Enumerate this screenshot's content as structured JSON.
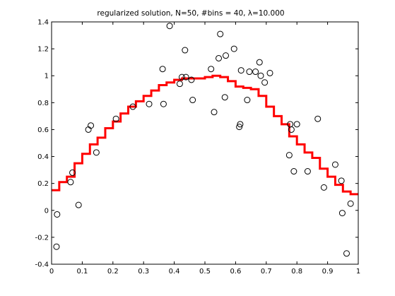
{
  "chart_data": {
    "type": "scatter",
    "title": "regularized solution, N=50, #bins = 40,    λ=10.000",
    "xlim": [
      0,
      1
    ],
    "ylim": [
      -0.4,
      1.4
    ],
    "xticks": [
      0,
      0.1,
      0.2,
      0.3,
      0.4,
      0.5,
      0.6,
      0.7,
      0.8,
      0.9,
      1
    ],
    "yticks": [
      -0.4,
      -0.2,
      0,
      0.2,
      0.4,
      0.6,
      0.8,
      1,
      1.2,
      1.4
    ],
    "xtick_labels": [
      "0",
      "0.1",
      "0.2",
      "0.3",
      "0.4",
      "0.5",
      "0.6",
      "0.7",
      "0.8",
      "0.9",
      "1"
    ],
    "ytick_labels": [
      "-0.4",
      "-0.2",
      "0",
      "0.2",
      "0.4",
      "0.6",
      "0.8",
      "1",
      "1.2",
      "1.4"
    ],
    "grid": false,
    "series": [
      {
        "type": "scatter",
        "marker": "open-circle",
        "color": "#000000",
        "points": [
          {
            "x": 0.016,
            "y": -0.27
          },
          {
            "x": 0.018,
            "y": -0.03
          },
          {
            "x": 0.062,
            "y": 0.21
          },
          {
            "x": 0.068,
            "y": 0.28
          },
          {
            "x": 0.088,
            "y": 0.04
          },
          {
            "x": 0.12,
            "y": 0.6
          },
          {
            "x": 0.128,
            "y": 0.63
          },
          {
            "x": 0.146,
            "y": 0.43
          },
          {
            "x": 0.21,
            "y": 0.68
          },
          {
            "x": 0.265,
            "y": 0.77
          },
          {
            "x": 0.318,
            "y": 0.79
          },
          {
            "x": 0.362,
            "y": 1.05
          },
          {
            "x": 0.365,
            "y": 0.79
          },
          {
            "x": 0.385,
            "y": 1.37
          },
          {
            "x": 0.418,
            "y": 0.94
          },
          {
            "x": 0.425,
            "y": 0.99
          },
          {
            "x": 0.438,
            "y": 0.99
          },
          {
            "x": 0.435,
            "y": 1.19
          },
          {
            "x": 0.456,
            "y": 0.97
          },
          {
            "x": 0.46,
            "y": 0.82
          },
          {
            "x": 0.52,
            "y": 1.05
          },
          {
            "x": 0.53,
            "y": 0.73
          },
          {
            "x": 0.545,
            "y": 1.13
          },
          {
            "x": 0.55,
            "y": 1.31
          },
          {
            "x": 0.565,
            "y": 0.84
          },
          {
            "x": 0.568,
            "y": 1.15
          },
          {
            "x": 0.595,
            "y": 1.2
          },
          {
            "x": 0.612,
            "y": 0.62
          },
          {
            "x": 0.615,
            "y": 0.64
          },
          {
            "x": 0.618,
            "y": 1.04
          },
          {
            "x": 0.638,
            "y": 0.82
          },
          {
            "x": 0.645,
            "y": 1.03
          },
          {
            "x": 0.665,
            "y": 1.03
          },
          {
            "x": 0.678,
            "y": 1.1
          },
          {
            "x": 0.682,
            "y": 1.0
          },
          {
            "x": 0.695,
            "y": 0.95
          },
          {
            "x": 0.712,
            "y": 1.02
          },
          {
            "x": 0.775,
            "y": 0.41
          },
          {
            "x": 0.778,
            "y": 0.64
          },
          {
            "x": 0.782,
            "y": 0.6
          },
          {
            "x": 0.79,
            "y": 0.29
          },
          {
            "x": 0.8,
            "y": 0.64
          },
          {
            "x": 0.835,
            "y": 0.29
          },
          {
            "x": 0.868,
            "y": 0.68
          },
          {
            "x": 0.888,
            "y": 0.17
          },
          {
            "x": 0.925,
            "y": 0.34
          },
          {
            "x": 0.945,
            "y": 0.22
          },
          {
            "x": 0.948,
            "y": -0.02
          },
          {
            "x": 0.962,
            "y": -0.32
          },
          {
            "x": 0.975,
            "y": 0.05
          }
        ]
      },
      {
        "type": "line",
        "style": "step",
        "color": "#ff0000",
        "points": [
          {
            "x": 0.0125,
            "y": 0.15
          },
          {
            "x": 0.0375,
            "y": 0.21
          },
          {
            "x": 0.0625,
            "y": 0.25
          },
          {
            "x": 0.0875,
            "y": 0.35
          },
          {
            "x": 0.1125,
            "y": 0.42
          },
          {
            "x": 0.1375,
            "y": 0.49
          },
          {
            "x": 0.1625,
            "y": 0.54
          },
          {
            "x": 0.1875,
            "y": 0.61
          },
          {
            "x": 0.2125,
            "y": 0.66
          },
          {
            "x": 0.2375,
            "y": 0.72
          },
          {
            "x": 0.2625,
            "y": 0.77
          },
          {
            "x": 0.2875,
            "y": 0.81
          },
          {
            "x": 0.3125,
            "y": 0.85
          },
          {
            "x": 0.3375,
            "y": 0.89
          },
          {
            "x": 0.3625,
            "y": 0.93
          },
          {
            "x": 0.3875,
            "y": 0.95
          },
          {
            "x": 0.4125,
            "y": 0.97
          },
          {
            "x": 0.4375,
            "y": 0.98
          },
          {
            "x": 0.4625,
            "y": 0.98
          },
          {
            "x": 0.4875,
            "y": 0.98
          },
          {
            "x": 0.5125,
            "y": 0.99
          },
          {
            "x": 0.5375,
            "y": 1.0
          },
          {
            "x": 0.5625,
            "y": 0.99
          },
          {
            "x": 0.5875,
            "y": 0.96
          },
          {
            "x": 0.6125,
            "y": 0.92
          },
          {
            "x": 0.6375,
            "y": 0.91
          },
          {
            "x": 0.6625,
            "y": 0.9
          },
          {
            "x": 0.6875,
            "y": 0.85
          },
          {
            "x": 0.7125,
            "y": 0.77
          },
          {
            "x": 0.7375,
            "y": 0.7
          },
          {
            "x": 0.7625,
            "y": 0.64
          },
          {
            "x": 0.7875,
            "y": 0.55
          },
          {
            "x": 0.8125,
            "y": 0.49
          },
          {
            "x": 0.8375,
            "y": 0.43
          },
          {
            "x": 0.8625,
            "y": 0.39
          },
          {
            "x": 0.8875,
            "y": 0.31
          },
          {
            "x": 0.9125,
            "y": 0.25
          },
          {
            "x": 0.9375,
            "y": 0.19
          },
          {
            "x": 0.9625,
            "y": 0.14
          },
          {
            "x": 0.9875,
            "y": 0.12
          }
        ]
      }
    ]
  }
}
